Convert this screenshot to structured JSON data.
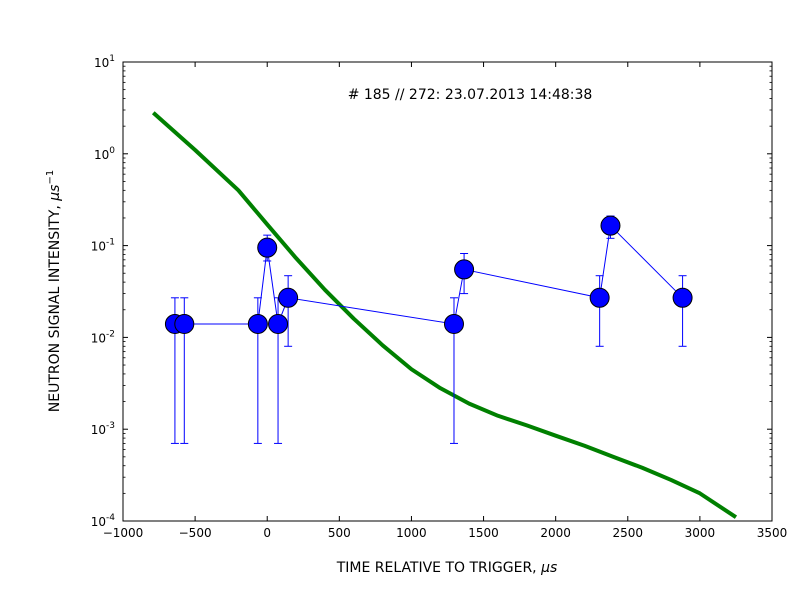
{
  "chart_data": {
    "type": "scatter",
    "title": "# 185 // 272: 23.07.2013 14:48:38",
    "xlabel": "TIME RELATIVE TO TRIGGER, ",
    "xlabel_unit": "μs",
    "ylabel": "NEUTRON SIGNAL INTENSITY, ",
    "ylabel_unit": "μs",
    "ylabel_exp": "−1",
    "xlim": [
      -1000,
      3500
    ],
    "ylim": [
      0.0001,
      10
    ],
    "yscale": "log",
    "grid": false,
    "xticks": [
      -1000,
      -500,
      0,
      500,
      1000,
      1500,
      2000,
      2500,
      3000,
      3500
    ],
    "xtick_labels": [
      "−1000",
      "−500",
      "0",
      "500",
      "1000",
      "1500",
      "2000",
      "2500",
      "3000",
      "3500"
    ],
    "yticks": [
      {
        "value": 10,
        "base": "10",
        "exp": "1"
      },
      {
        "value": 1,
        "base": "10",
        "exp": "0"
      },
      {
        "value": 0.1,
        "base": "10",
        "exp": "-1"
      },
      {
        "value": 0.01,
        "base": "10",
        "exp": "-2"
      },
      {
        "value": 0.001,
        "base": "10",
        "exp": "-3"
      },
      {
        "value": 0.0001,
        "base": "10",
        "exp": "-4"
      }
    ],
    "series": [
      {
        "kind": "points_with_errorbars",
        "color": "#0000ff",
        "points": [
          {
            "x": -640,
            "y": 0.014,
            "ylo": 0.0007,
            "yhi": 0.027
          },
          {
            "x": -575,
            "y": 0.014,
            "ylo": 0.0007,
            "yhi": 0.027
          },
          {
            "x": -65,
            "y": 0.014,
            "ylo": 0.0007,
            "yhi": 0.027
          },
          {
            "x": 0,
            "y": 0.095,
            "ylo": 0.068,
            "yhi": 0.13
          },
          {
            "x": 75,
            "y": 0.014,
            "ylo": 0.0007,
            "yhi": 0.027
          },
          {
            "x": 145,
            "y": 0.027,
            "ylo": 0.008,
            "yhi": 0.047
          },
          {
            "x": 1295,
            "y": 0.014,
            "ylo": 0.0007,
            "yhi": 0.027
          },
          {
            "x": 1365,
            "y": 0.055,
            "ylo": 0.03,
            "yhi": 0.082
          },
          {
            "x": 2305,
            "y": 0.027,
            "ylo": 0.008,
            "yhi": 0.047
          },
          {
            "x": 2380,
            "y": 0.165,
            "ylo": 0.12,
            "yhi": 0.21
          },
          {
            "x": 2880,
            "y": 0.027,
            "ylo": 0.008,
            "yhi": 0.047
          }
        ]
      },
      {
        "kind": "curve",
        "color": "#008000",
        "x": [
          -790,
          -500,
          -200,
          0,
          200,
          400,
          600,
          800,
          1000,
          1200,
          1400,
          1600,
          1800,
          2000,
          2200,
          2400,
          2600,
          2800,
          3000,
          3250
        ],
        "y": [
          2.8,
          1.1,
          0.4,
          0.17,
          0.073,
          0.033,
          0.016,
          0.0082,
          0.0045,
          0.0028,
          0.0019,
          0.0014,
          0.0011,
          0.00085,
          0.00066,
          0.0005,
          0.00038,
          0.00028,
          0.0002,
          0.00011
        ]
      }
    ]
  }
}
